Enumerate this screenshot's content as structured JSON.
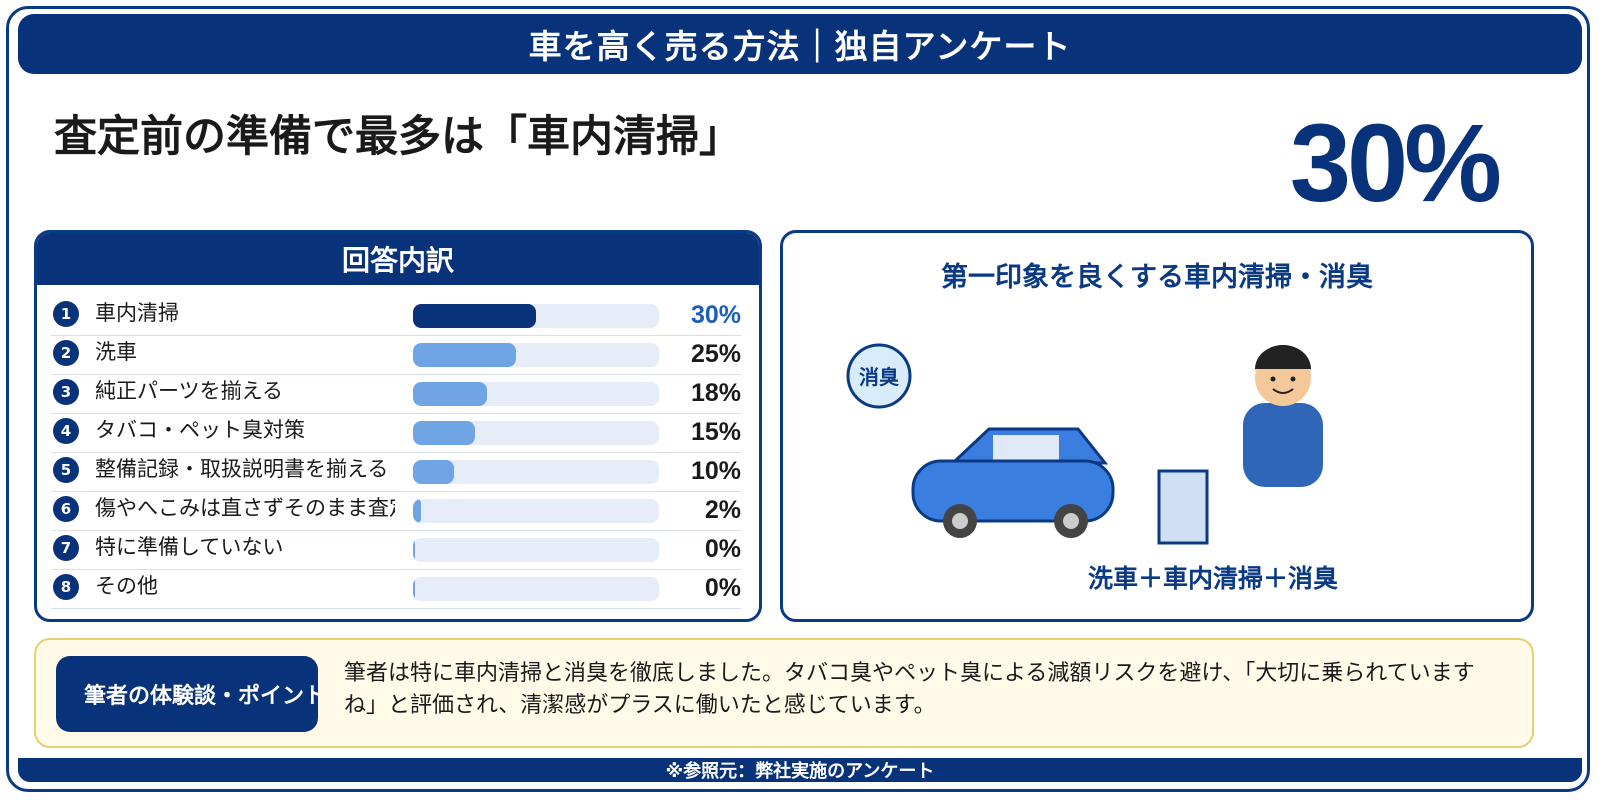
{
  "banner": {
    "title": "車を高く売る方法｜独自アンケート"
  },
  "headline": "査定前の準備で最多は「車内清掃」",
  "highlight": {
    "value": "30%"
  },
  "breakdown": {
    "title": "回答内訳"
  },
  "chart_data": {
    "type": "bar",
    "title": "回答内訳",
    "categories": [
      "車内清掃",
      "洗車",
      "純正パーツを揃える",
      "タバコ・ペット臭対策",
      "整備記録・取扱説明書を揃える",
      "傷やへこみは直さずそのまま査定",
      "特に準備していない",
      "その他"
    ],
    "values": [
      30,
      25,
      18,
      15,
      10,
      2,
      0,
      0
    ],
    "numbers": [
      "1",
      "2",
      "3",
      "4",
      "5",
      "6",
      "7",
      "8"
    ],
    "value_labels": [
      "30%",
      "25%",
      "18%",
      "15%",
      "10%",
      "2%",
      "0%",
      "0%"
    ],
    "unit": "%",
    "xlim": [
      0,
      60
    ],
    "highlight_index": 0,
    "colors": {
      "highlight": "#08327a",
      "bar": "#6fa5e4",
      "track": "#e6edf8",
      "highlight_label": "#1c5fb8"
    }
  },
  "illustration": {
    "title": "第一印象を良くする車内清掃・消臭",
    "badge": "消臭",
    "caption": "洗車＋車内清掃＋消臭",
    "icons": [
      "car-icon",
      "person-icon",
      "air-freshener-icon"
    ]
  },
  "note": {
    "tag": "筆者の体験談・ポイント",
    "body": "筆者は特に車内清掃と消臭を徹底しました。タバコ臭やペット臭による減額リスクを避け、「大切に乗られていますね」と評価され、清潔感がプラスに働いたと感じています。"
  },
  "footer": {
    "source": "※参照元：弊社実施のアンケート"
  },
  "colors": {
    "navy": "#08327a",
    "accent_blue": "#1c5fb8",
    "note_bg": "#fffbe8",
    "note_border": "#e7cf72"
  }
}
